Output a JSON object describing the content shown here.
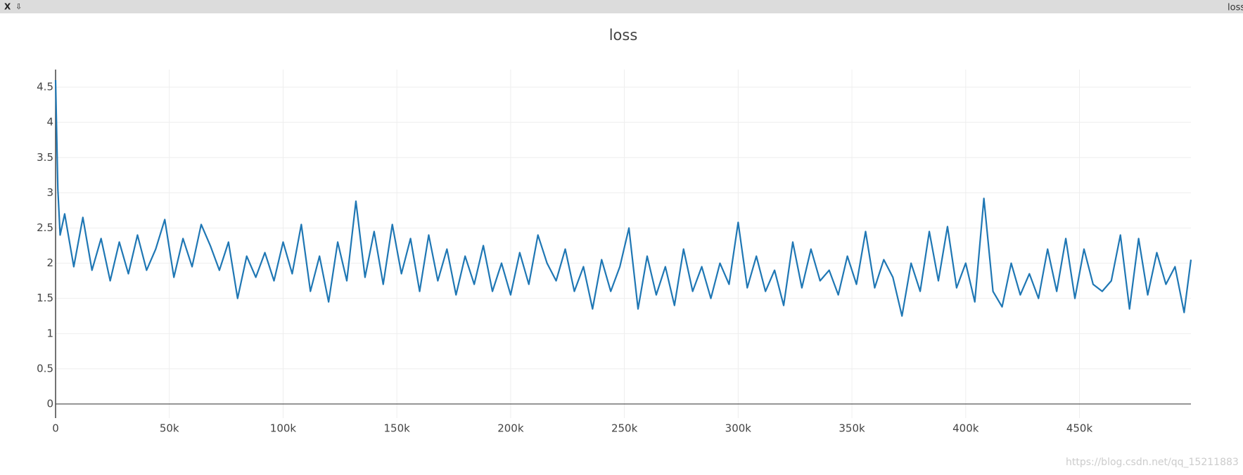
{
  "window": {
    "title": "loss",
    "close": "X",
    "pin": "⇩"
  },
  "watermark": "https://blog.csdn.net/qq_15211883",
  "chart_data": {
    "type": "line",
    "title": "loss",
    "xlim": [
      0,
      499000
    ],
    "ylim": [
      -0.2,
      4.75
    ],
    "xticks": [
      0,
      {
        "value": 50000,
        "label": "50k"
      },
      {
        "value": 100000,
        "label": "100k"
      },
      {
        "value": 150000,
        "label": "150k"
      },
      {
        "value": 200000,
        "label": "200k"
      },
      {
        "value": 250000,
        "label": "250k"
      },
      {
        "value": 300000,
        "label": "300k"
      },
      {
        "value": 350000,
        "label": "350k"
      },
      {
        "value": 400000,
        "label": "400k"
      },
      {
        "value": 450000,
        "label": "450k"
      }
    ],
    "yticks": [
      0,
      0.5,
      1,
      1.5,
      2,
      2.5,
      3,
      3.5,
      4,
      4.5
    ],
    "grid": true,
    "x": [
      0,
      1000,
      2000,
      4000,
      8000,
      12000,
      16000,
      20000,
      24000,
      28000,
      32000,
      36000,
      40000,
      44000,
      48000,
      52000,
      56000,
      60000,
      64000,
      68000,
      72000,
      76000,
      80000,
      84000,
      88000,
      92000,
      96000,
      100000,
      104000,
      108000,
      112000,
      116000,
      120000,
      124000,
      128000,
      132000,
      136000,
      140000,
      144000,
      148000,
      152000,
      156000,
      160000,
      164000,
      168000,
      172000,
      176000,
      180000,
      184000,
      188000,
      192000,
      196000,
      200000,
      204000,
      208000,
      212000,
      216000,
      220000,
      224000,
      228000,
      232000,
      236000,
      240000,
      244000,
      248000,
      252000,
      256000,
      260000,
      264000,
      268000,
      272000,
      276000,
      280000,
      284000,
      288000,
      292000,
      296000,
      300000,
      304000,
      308000,
      312000,
      316000,
      320000,
      324000,
      328000,
      332000,
      336000,
      340000,
      344000,
      348000,
      352000,
      356000,
      360000,
      364000,
      368000,
      372000,
      376000,
      380000,
      384000,
      388000,
      392000,
      396000,
      400000,
      404000,
      408000,
      412000,
      416000,
      420000,
      424000,
      428000,
      432000,
      436000,
      440000,
      444000,
      448000,
      452000,
      456000,
      460000,
      464000,
      468000,
      472000,
      476000,
      480000,
      484000,
      488000,
      492000,
      496000,
      499000
    ],
    "series": [
      {
        "name": "loss",
        "color": "#1f77b4",
        "values": [
          4.6,
          3.05,
          2.4,
          2.7,
          1.95,
          2.65,
          1.9,
          2.35,
          1.75,
          2.3,
          1.85,
          2.4,
          1.9,
          2.2,
          2.62,
          1.8,
          2.35,
          1.95,
          2.55,
          2.25,
          1.9,
          2.3,
          1.5,
          2.1,
          1.8,
          2.15,
          1.75,
          2.3,
          1.85,
          2.55,
          1.6,
          2.1,
          1.45,
          2.3,
          1.75,
          2.88,
          1.8,
          2.45,
          1.7,
          2.55,
          1.85,
          2.35,
          1.6,
          2.4,
          1.75,
          2.2,
          1.55,
          2.1,
          1.7,
          2.25,
          1.6,
          2.0,
          1.55,
          2.15,
          1.7,
          2.4,
          2.0,
          1.75,
          2.2,
          1.6,
          1.95,
          1.35,
          2.05,
          1.6,
          1.95,
          2.5,
          1.35,
          2.1,
          1.55,
          1.95,
          1.4,
          2.2,
          1.6,
          1.95,
          1.5,
          2.0,
          1.7,
          2.58,
          1.65,
          2.1,
          1.6,
          1.9,
          1.4,
          2.3,
          1.65,
          2.2,
          1.75,
          1.9,
          1.55,
          2.1,
          1.7,
          2.45,
          1.65,
          2.05,
          1.8,
          1.25,
          2.0,
          1.6,
          2.45,
          1.75,
          2.52,
          1.65,
          2.0,
          1.45,
          2.92,
          1.6,
          1.38,
          2.0,
          1.55,
          1.85,
          1.5,
          2.2,
          1.6,
          2.35,
          1.5,
          2.2,
          1.7,
          1.6,
          1.75,
          2.4,
          1.35,
          2.35,
          1.55,
          2.15,
          1.7,
          1.95,
          1.3,
          2.05
        ]
      }
    ]
  }
}
